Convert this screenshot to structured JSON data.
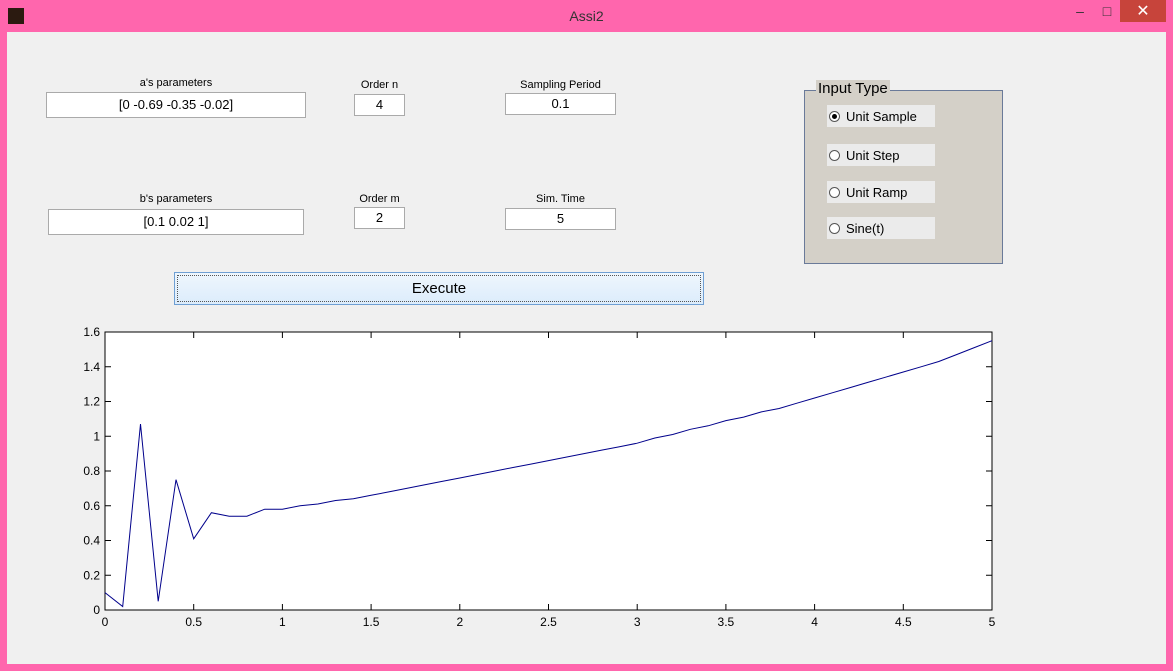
{
  "window": {
    "title": "Assi2",
    "minimize": "–",
    "maximize": "□",
    "close": "✕"
  },
  "inputs": {
    "a_params": {
      "label": "a's parameters",
      "value": "[0 -0.69 -0.35 -0.02]"
    },
    "order_n": {
      "label": "Order n",
      "value": "4"
    },
    "sampling_period": {
      "label": "Sampling Period",
      "value": "0.1"
    },
    "b_params": {
      "label": "b's parameters",
      "value": "[0.1  0.02  1]"
    },
    "order_m": {
      "label": "Order m",
      "value": "2"
    },
    "sim_time": {
      "label": "Sim. Time",
      "value": "5"
    }
  },
  "execute_label": "Execute",
  "input_type": {
    "title": "Input Type",
    "options": [
      {
        "label": "Unit Sample",
        "selected": true
      },
      {
        "label": "Unit Step",
        "selected": false
      },
      {
        "label": "Unit Ramp",
        "selected": false
      },
      {
        "label": "Sine(t)",
        "selected": false
      }
    ]
  },
  "chart_data": {
    "type": "line",
    "title": "",
    "xlabel": "",
    "ylabel": "",
    "xlim": [
      0,
      5
    ],
    "ylim": [
      0,
      1.6
    ],
    "xticks": [
      "0",
      "0.5",
      "1",
      "1.5",
      "2",
      "2.5",
      "3",
      "3.5",
      "4",
      "4.5",
      "5"
    ],
    "yticks": [
      "0",
      "0.2",
      "0.4",
      "0.6",
      "0.8",
      "1",
      "1.2",
      "1.4",
      "1.6"
    ],
    "grid": false,
    "line_color": "#00008b",
    "x": [
      0,
      0.1,
      0.2,
      0.3,
      0.4,
      0.5,
      0.6,
      0.7,
      0.8,
      0.9,
      1.0,
      1.1,
      1.2,
      1.3,
      1.4,
      1.5,
      1.6,
      1.7,
      1.8,
      1.9,
      2.0,
      2.1,
      2.2,
      2.3,
      2.4,
      2.5,
      2.6,
      2.7,
      2.8,
      2.9,
      3.0,
      3.1,
      3.2,
      3.3,
      3.4,
      3.5,
      3.6,
      3.7,
      3.8,
      3.9,
      4.0,
      4.1,
      4.2,
      4.3,
      4.4,
      4.5,
      4.6,
      4.7,
      4.8,
      4.9,
      5.0
    ],
    "y": [
      0.1,
      0.02,
      1.07,
      0.05,
      0.75,
      0.41,
      0.56,
      0.54,
      0.54,
      0.58,
      0.58,
      0.6,
      0.61,
      0.63,
      0.64,
      0.66,
      0.68,
      0.7,
      0.72,
      0.74,
      0.76,
      0.78,
      0.8,
      0.82,
      0.84,
      0.86,
      0.88,
      0.9,
      0.92,
      0.94,
      0.96,
      0.99,
      1.01,
      1.04,
      1.06,
      1.09,
      1.11,
      1.14,
      1.16,
      1.19,
      1.22,
      1.25,
      1.28,
      1.31,
      1.34,
      1.37,
      1.4,
      1.43,
      1.47,
      1.51,
      1.55
    ]
  }
}
